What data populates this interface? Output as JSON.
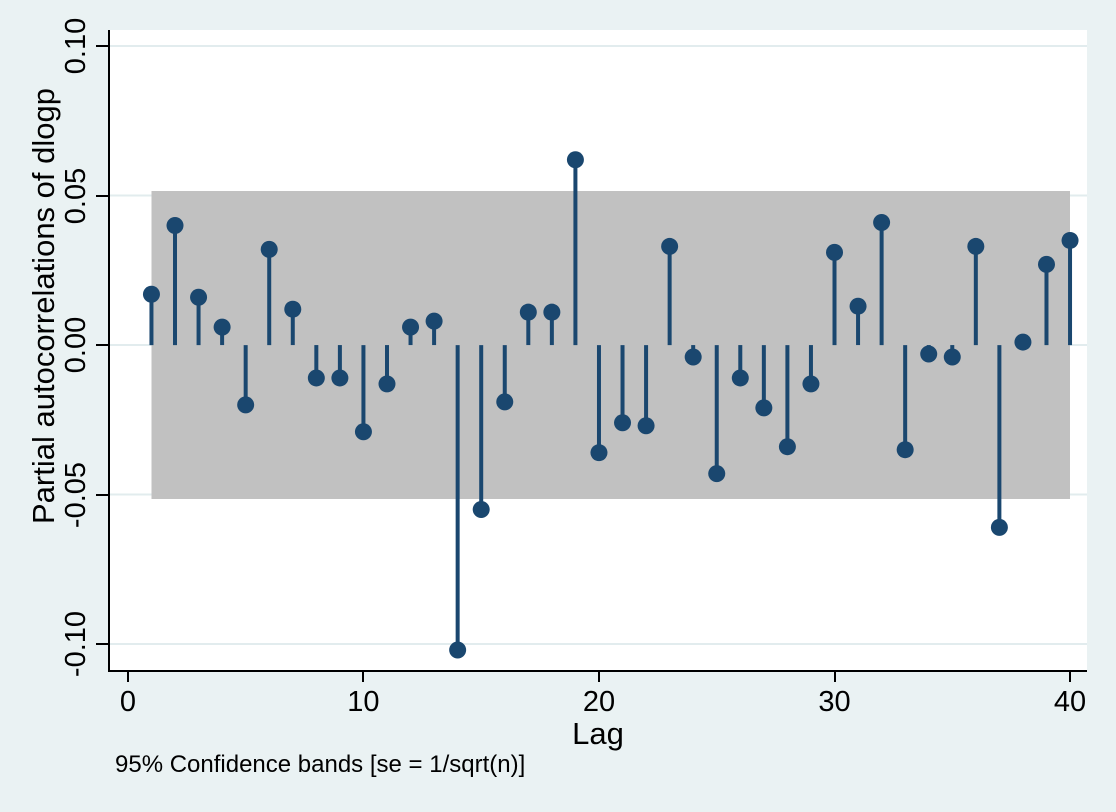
{
  "chart_data": {
    "type": "stem",
    "title": "",
    "ylabel": "Partial autocorrelations of dlogp",
    "xlabel": "Lag",
    "note": "95% Confidence bands [se = 1/sqrt(n)]",
    "grid": true,
    "legend": "none",
    "xlim": [
      -0.76,
      40.72
    ],
    "ylim": [
      -0.1087,
      0.1054
    ],
    "x_ticks": [
      0,
      10,
      20,
      30,
      40
    ],
    "x_tick_labels": [
      "0",
      "10",
      "20",
      "30",
      "40"
    ],
    "y_ticks": [
      0.1,
      0.05,
      0.0,
      -0.05,
      -0.1
    ],
    "y_tick_labels": [
      "0.10",
      "0.05",
      "0.00",
      "-0.05",
      "-0.10"
    ],
    "confidence_band": {
      "label": "95% confidence band",
      "upper": 0.0515,
      "lower": -0.0515,
      "x_start": 1,
      "x_end": 40
    },
    "lags": [
      1,
      2,
      3,
      4,
      5,
      6,
      7,
      8,
      9,
      10,
      11,
      12,
      13,
      14,
      15,
      16,
      17,
      18,
      19,
      20,
      21,
      22,
      23,
      24,
      25,
      26,
      27,
      28,
      29,
      30,
      31,
      32,
      33,
      34,
      35,
      36,
      37,
      38,
      39,
      40
    ],
    "values": [
      0.017,
      0.04,
      0.016,
      0.006,
      -0.02,
      0.032,
      0.012,
      -0.011,
      -0.011,
      -0.029,
      -0.013,
      0.006,
      0.008,
      -0.102,
      -0.055,
      -0.019,
      0.011,
      0.011,
      0.062,
      -0.036,
      -0.026,
      -0.027,
      0.033,
      -0.004,
      -0.043,
      -0.011,
      -0.021,
      -0.034,
      -0.013,
      0.031,
      0.013,
      0.041,
      -0.035,
      -0.003,
      -0.004,
      0.033,
      -0.061,
      0.001,
      0.027,
      0.035
    ]
  },
  "colors": {
    "background": "#eaf2f3",
    "plot_background": "#ffffff",
    "band": "#c1c1c1",
    "stem": "#1a476f",
    "dot": "#1a476f",
    "gridline": "#e2ecee",
    "axis": "#000000"
  }
}
